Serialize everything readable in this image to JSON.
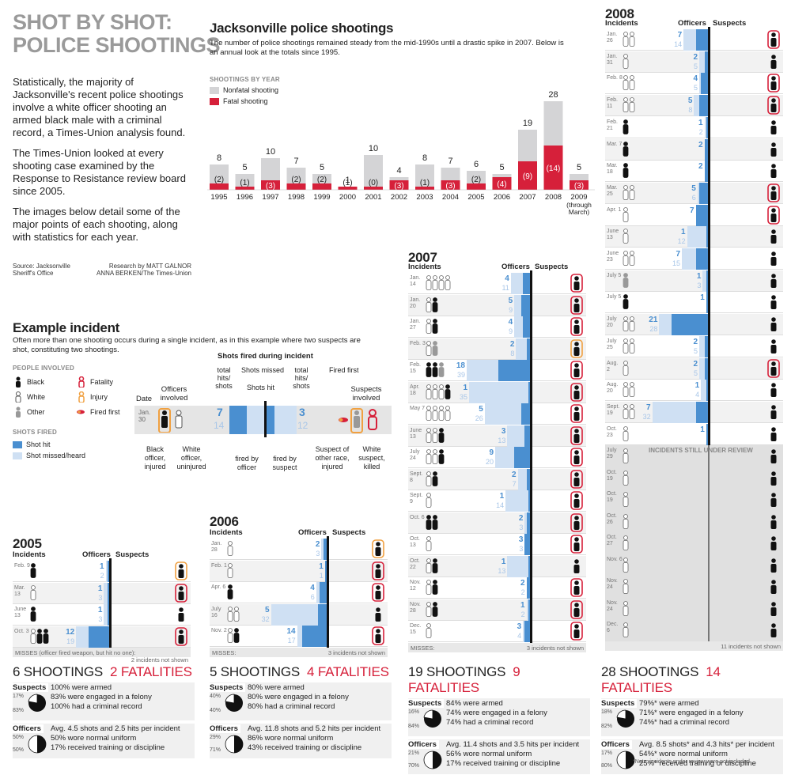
{
  "header": {
    "title_l1": "SHOT BY SHOT:",
    "title_l2": "POLICE SHOOTINGS",
    "intro": [
      "Statistically, the majority of Jacksonville's recent police shootings involve a white officer shooting an armed black male with a criminal record, a Times-Union analysis found.",
      "The Times-Union looked at every shooting case examined by the Response to Resistance review board since 2005.",
      "The images below detail some of the major points of each shooting, along with statistics for each year."
    ],
    "source": "Source: Jacksonville Sheriff's Office",
    "research_l1": "Research by MATT GALNOR",
    "research_l2": "ANNA BERKEN/The Times-Union"
  },
  "chart_data": {
    "type": "bar",
    "title": "Jacksonville police shootings",
    "subtitle": "The number of police shootings remained steady from the mid-1990s until a drastic spike in 2007. Below is an annual look at the totals since 1995.",
    "tag": "SHOOTINGS BY YEAR",
    "categories": [
      "1995",
      "1996",
      "1997",
      "1998",
      "1999",
      "2000",
      "2001",
      "2002",
      "2003",
      "2004",
      "2005",
      "2006",
      "2007",
      "2008",
      "2009"
    ],
    "category_note_2009": "(through March)",
    "series": [
      {
        "name": "Nonfatal shooting",
        "color": "#d4d4d6",
        "values": [
          6,
          4,
          7,
          5,
          3,
          0,
          10,
          1,
          7,
          4,
          4,
          1,
          10,
          14,
          2
        ]
      },
      {
        "name": "Fatal shooting",
        "color": "#d6203a",
        "values": [
          2,
          1,
          3,
          2,
          2,
          1,
          0,
          3,
          1,
          3,
          2,
          4,
          9,
          14,
          3
        ]
      }
    ],
    "totals": [
      8,
      5,
      10,
      7,
      5,
      1,
      10,
      4,
      8,
      7,
      6,
      5,
      19,
      28,
      5
    ],
    "fatal_labels": [
      "(2)",
      "(1)",
      "(3)",
      "(2)",
      "(2)",
      "(1)",
      "(0)",
      "(3)",
      "(1)",
      "(3)",
      "(2)",
      "(4)",
      "(9)",
      "(14)",
      "(3)"
    ],
    "ylim": [
      0,
      28
    ]
  },
  "example": {
    "title": "Example incident",
    "desc": "Often more than one shooting occurs during a single incident, as in this example where two suspects are shot, constituting two shootings.",
    "people_tag": "PEOPLE INVOLVED",
    "people": [
      "Black",
      "White",
      "Other",
      "Fatality",
      "Injury",
      "Fired first"
    ],
    "shots_tag": "SHOTS FIRED",
    "shot_hit": "Shot hit",
    "shot_missed": "Shot missed/heard",
    "shots_during": "Shots fired during incident",
    "total_hits_l": "total hits/ shots",
    "shots_missed": "Shots missed",
    "shots_hit": "Shots hit",
    "total_hits_r": "total hits/ shots",
    "fired_first": "Fired first",
    "date_lbl": "Date",
    "officers_involved": "Officers involved",
    "suspects_involved": "Suspects involved",
    "date_val": "Jan. 30",
    "off_hits": "7",
    "off_shots": "14",
    "sus_hits": "3",
    "sus_shots": "12",
    "cap_black_officer": "Black officer, injured",
    "cap_white_officer": "White officer, uninjured",
    "cap_fired_officer": "fired by officer",
    "cap_fired_suspect": "fired by suspect",
    "cap_suspect_other": "Suspect of other race, injured",
    "cap_white_suspect": "White suspect, killed"
  },
  "labels": {
    "incidents": "Incidents",
    "officers": "Officers",
    "suspects": "Suspects",
    "under_review": "INCIDENTS STILL UNDER REVIEW"
  },
  "y2005": {
    "year": "2005",
    "rows": [
      {
        "date": "Feb. 9",
        "hits": "1",
        "shots": "2"
      },
      {
        "date": "Mar. 13",
        "hits": "1",
        "shots": "3"
      },
      {
        "date": "June 13",
        "hits": "1",
        "shots": "3"
      },
      {
        "date": "Oct. 3",
        "hits": "12",
        "shots": "19"
      }
    ],
    "misses": "MISSES (officer fired weapon, but hit no one):",
    "not_shown": "2 incidents not shown",
    "shootings": "6 SHOOTINGS",
    "fatalities": "2 FATALITIES",
    "suspects": [
      "100% were armed",
      "83% were engaged in a felony",
      "100% had a criminal record"
    ],
    "race_pct": [
      "17%",
      "83%"
    ],
    "officers": [
      "Avg. 4.5 shots and 2.5 hits per incident",
      "50% wore normal uniform",
      "17% received training or discipline"
    ],
    "off_pct": [
      "50%",
      "50%"
    ],
    "race_word": "Race"
  },
  "y2006": {
    "year": "2006",
    "rows": [
      {
        "date": "Jan. 28",
        "hits": "2",
        "shots": "3"
      },
      {
        "date": "Feb. 1",
        "hits": "1",
        "shots": "1"
      },
      {
        "date": "Apr. 6",
        "hits": "4",
        "shots": "6"
      },
      {
        "date": "July 16",
        "hits": "5",
        "shots": "32"
      },
      {
        "date": "Nov. 2",
        "hits": "14",
        "shots": "17"
      }
    ],
    "misses": "MISSES:",
    "not_shown": "3 incidents not shown",
    "shootings": "5 SHOOTINGS",
    "fatalities": "4 FATALITIES",
    "suspects": [
      "80% were armed",
      "80% were engaged in a felony",
      "80% had a criminal record"
    ],
    "race_pct": [
      "40%",
      "40%",
      "20%"
    ],
    "officers": [
      "Avg. 11.8 shots and 5.2 hits per incident",
      "86% wore normal uniform",
      "43% received training or discipline"
    ],
    "off_pct": [
      "29%",
      "71%"
    ]
  },
  "y2007": {
    "year": "2007",
    "rows": [
      {
        "date": "Jan. 14",
        "hits": "4",
        "shots": "11"
      },
      {
        "date": "Jan. 20",
        "hits": "5",
        "shots": "9"
      },
      {
        "date": "Jan. 27",
        "hits": "4",
        "shots": "9"
      },
      {
        "date": "Feb. 3",
        "hits": "2",
        "shots": "8"
      },
      {
        "date": "Feb. 15",
        "hits": "18",
        "shots": "39"
      },
      {
        "date": "Apr. 18",
        "hits": "1",
        "shots": "35"
      },
      {
        "date": "May 7",
        "hits": "5",
        "shots": "26"
      },
      {
        "date": "June 13",
        "hits": "3",
        "shots": "13"
      },
      {
        "date": "July 24",
        "hits": "9",
        "shots": "20"
      },
      {
        "date": "Sept. 8",
        "hits": "2",
        "shots": "7"
      },
      {
        "date": "Sept. 9",
        "hits": "1",
        "shots": "14"
      },
      {
        "date": "Oct. 6",
        "hits": "2",
        "shots": "3"
      },
      {
        "date": "Oct. 13",
        "hits": "3",
        "shots": "3"
      },
      {
        "date": "Oct. 22",
        "hits": "1",
        "shots": "13"
      },
      {
        "date": "Nov. 12",
        "hits": "2",
        "shots": "2"
      },
      {
        "date": "Nov. 28",
        "hits": "1",
        "shots": "2"
      },
      {
        "date": "Dec. 15",
        "hits": "3",
        "shots": "4"
      }
    ],
    "misses": "MISSES:",
    "not_shown": "3 incidents not shown",
    "shootings": "19 SHOOTINGS",
    "fatalities": "9 FATALITIES",
    "suspects": [
      "84% were armed",
      "74% were engaged in a felony",
      "74% had a criminal record"
    ],
    "race_pct": [
      "16%",
      "84%"
    ],
    "officers": [
      "Avg. 11.4 shots and 3.5 hits per incident",
      "56% wore normal uniform",
      "17% received training or discipline"
    ],
    "off_pct": [
      "21%",
      "70%",
      "9%"
    ]
  },
  "y2008": {
    "year": "2008",
    "rows": [
      {
        "date": "Jan. 26",
        "hits": "7",
        "shots": "14"
      },
      {
        "date": "Jan. 31",
        "hits": "2",
        "shots": "5"
      },
      {
        "date": "Feb. 8",
        "hits": "4",
        "shots": "5"
      },
      {
        "date": "Feb. 11",
        "hits": "5",
        "shots": "8"
      },
      {
        "date": "Feb. 21",
        "hits": "1",
        "shots": "2"
      },
      {
        "date": "Mar. 7",
        "hits": "2",
        "shots": ""
      },
      {
        "date": "Mar. 18",
        "hits": "2",
        "shots": ""
      },
      {
        "date": "Mar. 25",
        "hits": "5",
        "shots": "6"
      },
      {
        "date": "Apr. 1",
        "hits": "7",
        "shots": ""
      },
      {
        "date": "June 13",
        "hits": "1",
        "shots": "12"
      },
      {
        "date": "June 23",
        "hits": "7",
        "shots": "15"
      },
      {
        "date": "July 5",
        "hits": "1",
        "shots": "3"
      },
      {
        "date": "July 5",
        "hits": "1",
        "shots": ""
      },
      {
        "date": "July 20",
        "hits": "21",
        "shots": "28"
      },
      {
        "date": "July 25",
        "hits": "2",
        "shots": "5"
      },
      {
        "date": "Aug. 2",
        "hits": "2",
        "shots": "5"
      },
      {
        "date": "Aug. 20",
        "hits": "1",
        "shots": "4"
      },
      {
        "date": "Sept. 19",
        "hits": "7",
        "shots": "32"
      },
      {
        "date": "Oct. 23",
        "hits": "1",
        "shots": ""
      }
    ],
    "review_dates": [
      "July 29",
      "Oct. 19",
      "Oct. 19",
      "Oct. 26",
      "Oct. 27",
      "Nov. 6",
      "Nov. 24",
      "Nov. 24",
      "Dec. 6"
    ],
    "not_shown": "11 incidents not shown",
    "shootings": "28 SHOOTINGS",
    "fatalities": "14 FATALITIES",
    "suspects": [
      "79%* were armed",
      "71%* were engaged in a felony",
      "74%* had a criminal record"
    ],
    "race_pct": [
      "18%",
      "82%"
    ],
    "officers": [
      "Avg. 8.5 shots* and 4.3 hits* per incident",
      "54%* wore normal uniform",
      "25%* received training or discipline"
    ],
    "off_pct": [
      "17%",
      "80%",
      "7%"
    ],
    "note": "*Note: incidents under review were not included"
  },
  "sum_labels": {
    "suspects": "Suspects",
    "officers": "Officers"
  }
}
